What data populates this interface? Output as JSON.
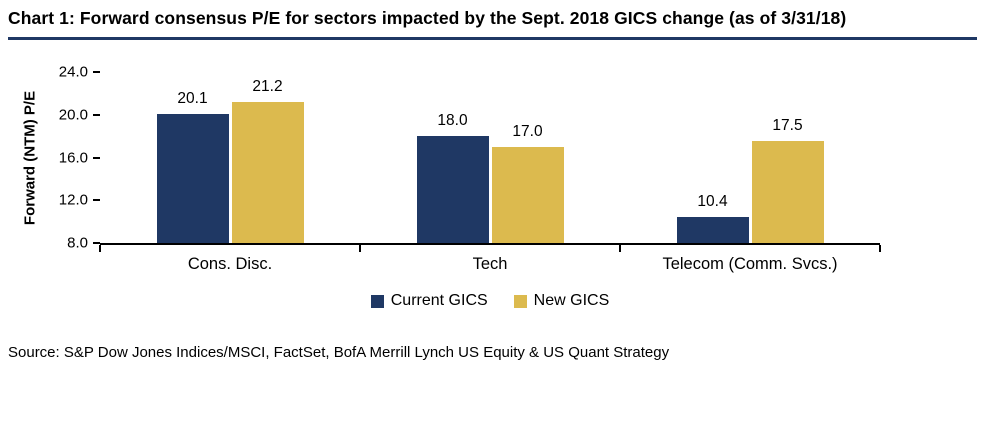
{
  "title": "Chart 1: Forward consensus P/E for sectors impacted by the Sept. 2018 GICS change (as of 3/31/18)",
  "source": "Source: S&P Dow Jones Indices/MSCI, FactSet, BofA Merrill Lynch US Equity & US Quant Strategy",
  "colors": {
    "title_rule": "#1f3864",
    "current_gics": "#1f3864",
    "new_gics": "#dcba4e",
    "axis": "#000000"
  },
  "chart_data": {
    "type": "bar",
    "title": "Chart 1: Forward consensus P/E for sectors impacted by the Sept. 2018 GICS change (as of 3/31/18)",
    "xlabel": "",
    "ylabel": "Forward (NTM) P/E",
    "categories": [
      "Cons. Disc.",
      "Tech",
      "Telecom (Comm. Svcs.)"
    ],
    "series": [
      {
        "name": "Current GICS",
        "color": "#1f3864",
        "values": [
          20.1,
          18.0,
          10.4
        ]
      },
      {
        "name": "New GICS",
        "color": "#dcba4e",
        "values": [
          21.2,
          17.0,
          17.5
        ]
      }
    ],
    "ylim": [
      8.0,
      24.0
    ],
    "yticks": [
      8.0,
      12.0,
      16.0,
      20.0,
      24.0
    ],
    "grid": false,
    "legend_position": "bottom",
    "value_labels": true
  }
}
